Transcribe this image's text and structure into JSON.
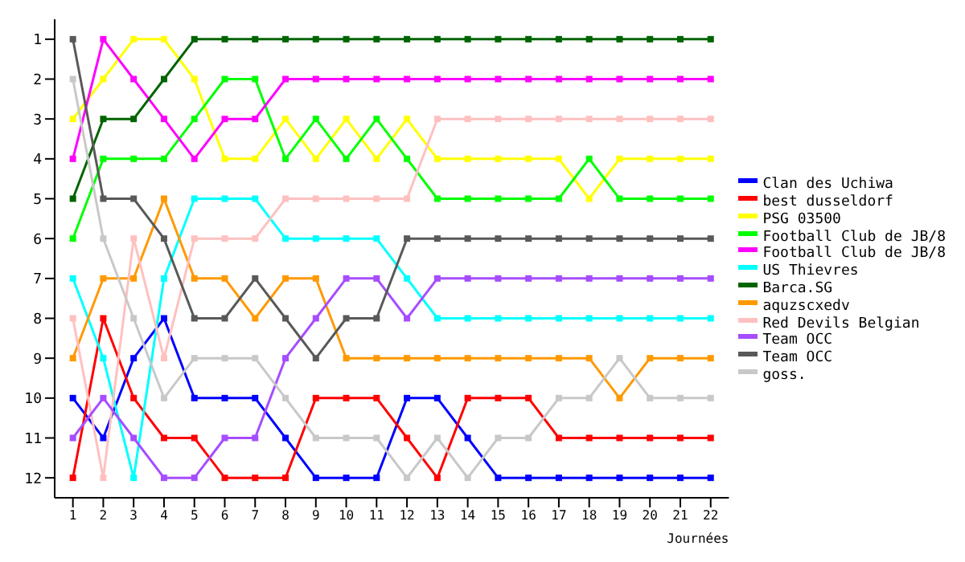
{
  "chart_data": {
    "type": "line",
    "xlabel": "Journées",
    "x": [
      1,
      2,
      3,
      4,
      5,
      6,
      7,
      8,
      9,
      10,
      11,
      12,
      13,
      14,
      15,
      16,
      17,
      18,
      19,
      20,
      21,
      22
    ],
    "xlim": [
      0.4,
      22.6
    ],
    "xticks": [
      1,
      2,
      3,
      4,
      5,
      6,
      7,
      8,
      9,
      10,
      11,
      12,
      13,
      14,
      15,
      16,
      17,
      18,
      19,
      20,
      21,
      22
    ],
    "ylim": [
      12.5,
      0.5
    ],
    "yticks": [
      1,
      2,
      3,
      4,
      5,
      6,
      7,
      8,
      9,
      10,
      11,
      12
    ],
    "grid": false,
    "legend": "right",
    "marker": "square",
    "line_style": "solid",
    "series": [
      {
        "name": "Clan des Uchiwa",
        "color": "#0000ff",
        "values": [
          10,
          11,
          9,
          8,
          10,
          10,
          10,
          11,
          12,
          12,
          12,
          10,
          10,
          11,
          12,
          12,
          12,
          12,
          12,
          12,
          12,
          12
        ]
      },
      {
        "name": "best dusseldorf",
        "color": "#ff0000",
        "values": [
          12,
          8,
          10,
          11,
          11,
          12,
          12,
          12,
          10,
          10,
          10,
          11,
          12,
          10,
          10,
          10,
          11,
          11,
          11,
          11,
          11,
          11
        ]
      },
      {
        "name": "PSG 03500",
        "color": "#ffff00",
        "values": [
          3,
          2,
          1,
          1,
          2,
          4,
          4,
          3,
          4,
          3,
          4,
          3,
          4,
          4,
          4,
          4,
          4,
          5,
          4,
          4,
          4,
          4
        ]
      },
      {
        "name": "Football Club de JB/8",
        "color": "#00ff00",
        "values": [
          6,
          4,
          4,
          4,
          3,
          2,
          2,
          4,
          3,
          4,
          3,
          4,
          5,
          5,
          5,
          5,
          5,
          4,
          5,
          5,
          5,
          5
        ]
      },
      {
        "name": "Football Club de JB/8",
        "color": "#ff00ff",
        "values": [
          4,
          1,
          2,
          3,
          4,
          3,
          3,
          2,
          2,
          2,
          2,
          2,
          2,
          2,
          2,
          2,
          2,
          2,
          2,
          2,
          2,
          2
        ]
      },
      {
        "name": "US Thievres",
        "color": "#00ffff",
        "values": [
          7,
          9,
          12,
          7,
          5,
          5,
          5,
          6,
          6,
          6,
          6,
          7,
          8,
          8,
          8,
          8,
          8,
          8,
          8,
          8,
          8,
          8
        ]
      },
      {
        "name": "Barca.SG",
        "color": "#006400",
        "values": [
          5,
          3,
          3,
          2,
          1,
          1,
          1,
          1,
          1,
          1,
          1,
          1,
          1,
          1,
          1,
          1,
          1,
          1,
          1,
          1,
          1,
          1
        ]
      },
      {
        "name": "aquzscxedv",
        "color": "#ff9900",
        "values": [
          9,
          7,
          7,
          5,
          7,
          7,
          8,
          7,
          7,
          9,
          9,
          9,
          9,
          9,
          9,
          9,
          9,
          9,
          10,
          9,
          9,
          9
        ]
      },
      {
        "name": "Red Devils Belgian",
        "color": "#ffc0c0",
        "values": [
          8,
          12,
          6,
          9,
          6,
          6,
          6,
          5,
          5,
          5,
          5,
          5,
          3,
          3,
          3,
          3,
          3,
          3,
          3,
          3,
          3,
          3
        ]
      },
      {
        "name": "Team OCC",
        "color": "#a64dff",
        "values": [
          11,
          10,
          11,
          12,
          12,
          11,
          11,
          9,
          8,
          7,
          7,
          8,
          7,
          7,
          7,
          7,
          7,
          7,
          7,
          7,
          7,
          7
        ]
      },
      {
        "name": "Team OCC",
        "color": "#595959",
        "values": [
          1,
          5,
          5,
          6,
          8,
          8,
          7,
          8,
          9,
          8,
          8,
          6,
          6,
          6,
          6,
          6,
          6,
          6,
          6,
          6,
          6,
          6
        ]
      },
      {
        "name": "goss.",
        "color": "#c8c8c8",
        "values": [
          2,
          6,
          8,
          10,
          9,
          9,
          9,
          10,
          11,
          11,
          11,
          12,
          11,
          12,
          11,
          11,
          10,
          10,
          9,
          10,
          10,
          10
        ]
      }
    ]
  }
}
